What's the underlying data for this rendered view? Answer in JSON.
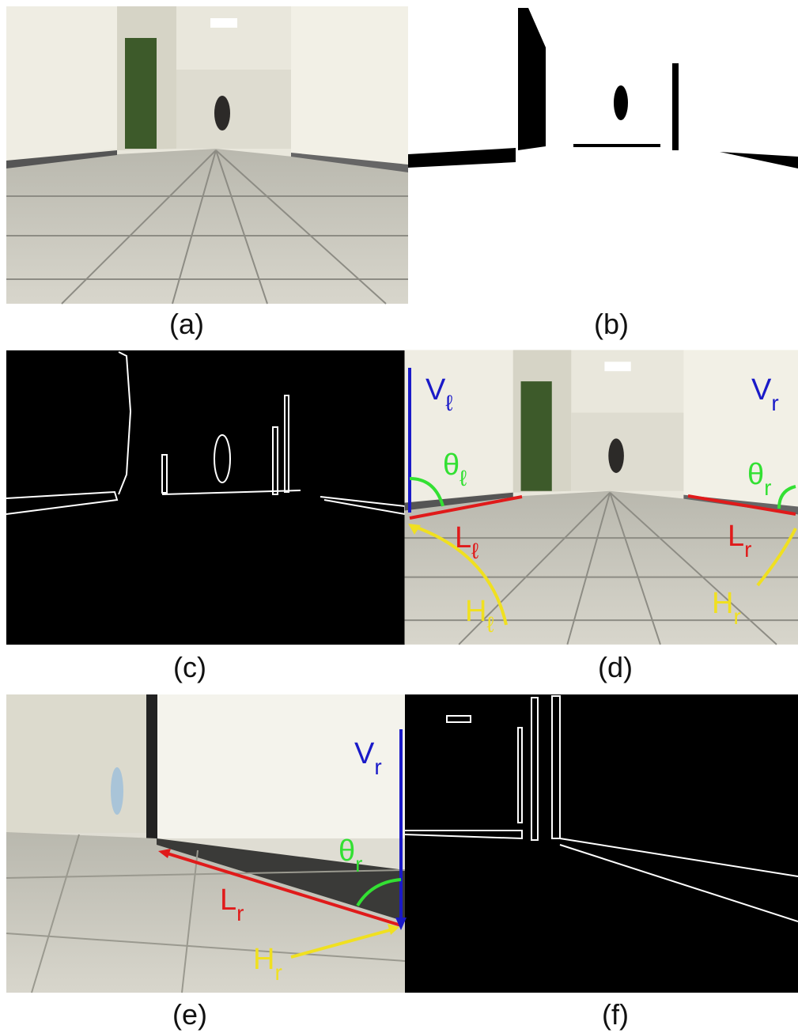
{
  "panels": [
    {
      "label": "(a)"
    },
    {
      "label": "(b)"
    },
    {
      "label": "(c)"
    },
    {
      "label": "(d)",
      "annotations": [
        {
          "base": "V",
          "sub": "ℓ"
        },
        {
          "base": "θ",
          "sub": "ℓ"
        },
        {
          "base": "L",
          "sub": "ℓ"
        },
        {
          "base": "H",
          "sub": "ℓ"
        },
        {
          "base": "V",
          "sub": "r"
        },
        {
          "base": "θ",
          "sub": "r"
        },
        {
          "base": "L",
          "sub": "r"
        },
        {
          "base": "H",
          "sub": "r"
        }
      ]
    },
    {
      "label": "(e)",
      "annotations": [
        {
          "base": "V",
          "sub": "r"
        },
        {
          "base": "θ",
          "sub": "r"
        },
        {
          "base": "L",
          "sub": "r"
        },
        {
          "base": "H",
          "sub": "r"
        }
      ]
    },
    {
      "label": "(f)"
    }
  ]
}
